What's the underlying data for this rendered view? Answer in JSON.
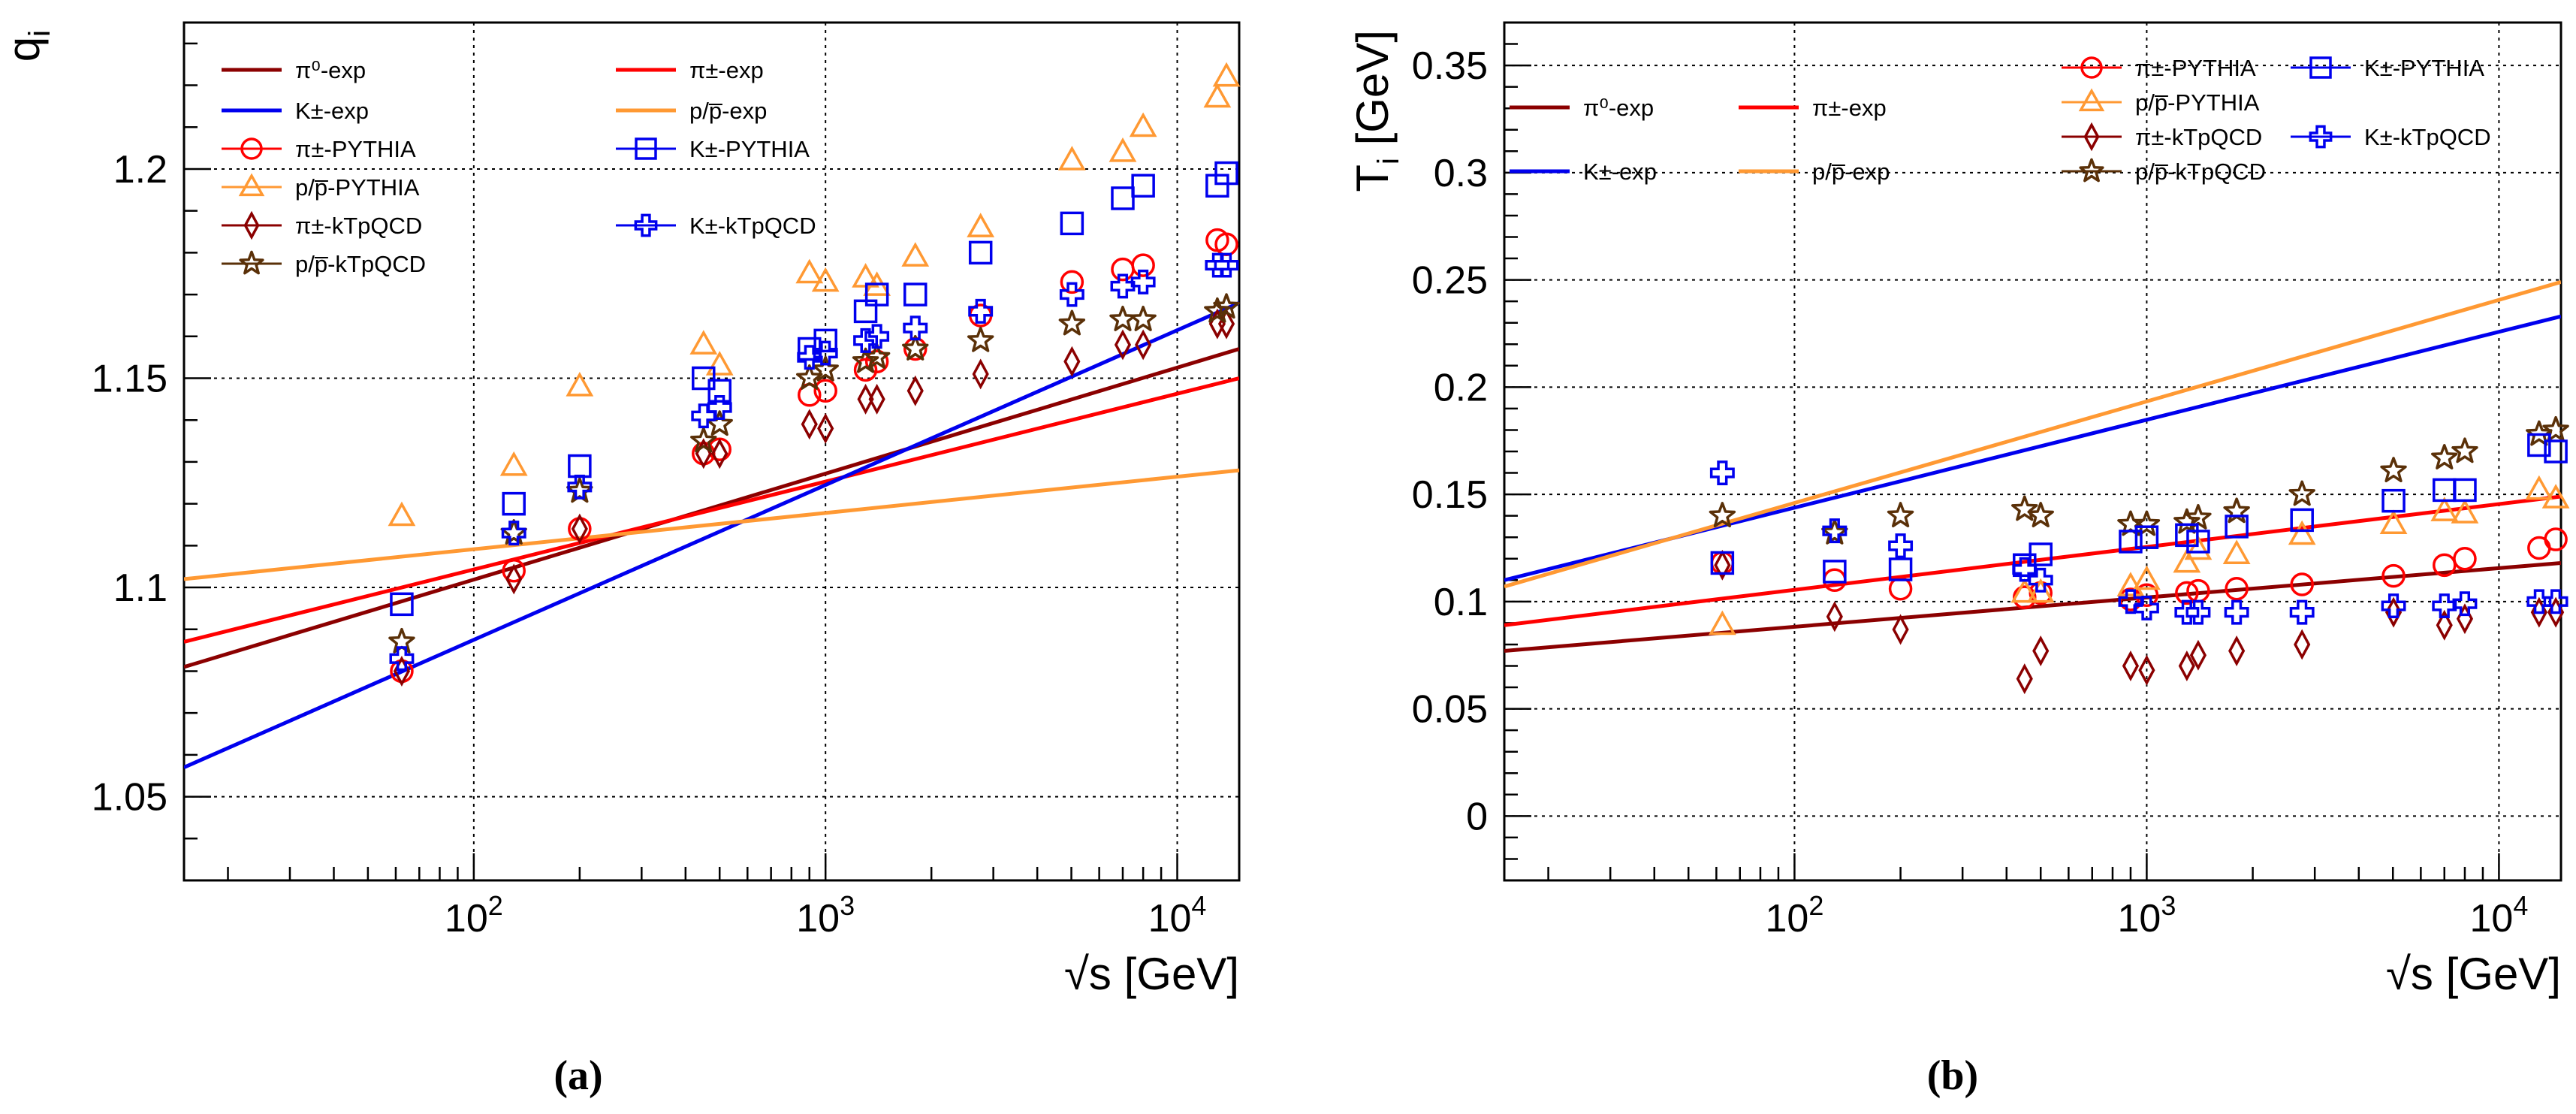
{
  "figure": {
    "caption_a": "(a)",
    "caption_b": "(b)"
  },
  "colors": {
    "pi0": "#8b0000",
    "pipm": "#ff0000",
    "kpm": "#0000ee",
    "proton": "#ff9933",
    "star": "#5a3008"
  },
  "chart_data": [
    {
      "type": "scatter",
      "panel": "a",
      "title": "",
      "xlabel": "√s [GeV]",
      "ylabel": "q_i",
      "ylabel_main": "q",
      "ylabel_sub": "i",
      "xscale": "log",
      "xlim": [
        15,
        15000
      ],
      "ylim": [
        1.03,
        1.235
      ],
      "xticks": [
        100,
        1000,
        10000
      ],
      "xtick_labels": [
        {
          "base": "10",
          "exp": "2"
        },
        {
          "base": "10",
          "exp": "3"
        },
        {
          "base": "10",
          "exp": "4"
        }
      ],
      "yticks": [
        1.05,
        1.1,
        1.15,
        1.2
      ],
      "ytick_labels": [
        "1.05",
        "1.1",
        "1.15",
        "1.2"
      ],
      "grid": true,
      "legend_position": "top-left",
      "legend": [
        {
          "label": "π⁰-exp",
          "key": "pi0_exp",
          "kind": "line",
          "col": 0
        },
        {
          "label": "K±-exp",
          "key": "k_exp",
          "kind": "line",
          "col": 0
        },
        {
          "label": "π±-PYTHIA",
          "key": "pi_py",
          "kind": "marker",
          "col": 0
        },
        {
          "label": "p/p̅-PYTHIA",
          "key": "p_py",
          "kind": "marker",
          "col": 0
        },
        {
          "label": "π±-kTpQCD",
          "key": "pi_kt",
          "kind": "marker",
          "col": 0
        },
        {
          "label": "p/p̅-kTpQCD",
          "key": "p_kt",
          "kind": "marker",
          "col": 0
        },
        {
          "label": "π±-exp",
          "key": "pipm_exp",
          "kind": "line",
          "col": 1
        },
        {
          "label": "p/p̅-exp",
          "key": "p_exp",
          "kind": "line",
          "col": 1
        },
        {
          "label": "K±-PYTHIA",
          "key": "k_py",
          "kind": "marker",
          "col": 1
        },
        {
          "label": "K±-kTpQCD",
          "key": "k_kt",
          "kind": "marker",
          "col": 1
        }
      ],
      "lines": [
        {
          "name": "pi0_exp",
          "color": "#8b0000",
          "x": [
            15,
            15000
          ],
          "y": [
            1.081,
            1.157
          ]
        },
        {
          "name": "pipm_exp",
          "color": "#ff0000",
          "x": [
            15,
            15000
          ],
          "y": [
            1.087,
            1.15
          ]
        },
        {
          "name": "k_exp",
          "color": "#0000ee",
          "x": [
            15,
            15000
          ],
          "y": [
            1.057,
            1.168
          ]
        },
        {
          "name": "p_exp",
          "color": "#ff9933",
          "x": [
            15,
            15000
          ],
          "y": [
            1.102,
            1.128
          ]
        }
      ],
      "series": [
        {
          "name": "pi_py",
          "marker": "circle",
          "color": "#ff0000",
          "x": [
            62.4,
            130,
            200,
            450,
            500,
            900,
            1000,
            1300,
            1400,
            1800,
            2760,
            5020,
            7000,
            8000,
            13000,
            13800
          ],
          "y": [
            1.08,
            1.104,
            1.114,
            1.132,
            1.133,
            1.146,
            1.147,
            1.152,
            1.154,
            1.157,
            1.165,
            1.173,
            1.176,
            1.177,
            1.183,
            1.182
          ]
        },
        {
          "name": "p_py",
          "marker": "triangle",
          "color": "#ff9933",
          "x": [
            62.4,
            130,
            200,
            450,
            500,
            900,
            1000,
            1300,
            1400,
            1800,
            2760,
            5020,
            7000,
            8000,
            13000,
            13800
          ],
          "y": [
            1.117,
            1.129,
            1.148,
            1.158,
            1.153,
            1.175,
            1.173,
            1.174,
            1.172,
            1.179,
            1.186,
            1.202,
            1.204,
            1.21,
            1.217,
            1.222
          ]
        },
        {
          "name": "pi_kt",
          "marker": "diamond",
          "color": "#8b0000",
          "x": [
            62.4,
            130,
            200,
            450,
            500,
            900,
            1000,
            1300,
            1400,
            1800,
            2760,
            5020,
            7000,
            8000,
            13000,
            13800
          ],
          "y": [
            1.08,
            1.102,
            1.114,
            1.132,
            1.132,
            1.139,
            1.138,
            1.145,
            1.145,
            1.147,
            1.151,
            1.154,
            1.158,
            1.158,
            1.163,
            1.163
          ]
        },
        {
          "name": "p_kt",
          "marker": "star",
          "color": "#5a3008",
          "x": [
            62.4,
            130,
            200,
            450,
            500,
            900,
            1000,
            1300,
            1400,
            1800,
            2760,
            5020,
            7000,
            8000,
            13000,
            13800
          ],
          "y": [
            1.087,
            1.113,
            1.123,
            1.135,
            1.139,
            1.15,
            1.152,
            1.154,
            1.155,
            1.157,
            1.159,
            1.163,
            1.164,
            1.164,
            1.166,
            1.167
          ]
        },
        {
          "name": "k_py",
          "marker": "square",
          "color": "#0000ee",
          "x": [
            62.4,
            130,
            200,
            450,
            500,
            900,
            1000,
            1300,
            1400,
            1800,
            2760,
            5020,
            7000,
            8000,
            13000,
            13800
          ],
          "y": [
            1.096,
            1.12,
            1.129,
            1.15,
            1.147,
            1.157,
            1.159,
            1.166,
            1.17,
            1.17,
            1.18,
            1.187,
            1.193,
            1.196,
            1.196,
            1.199
          ]
        },
        {
          "name": "k_kt",
          "marker": "cross",
          "color": "#0000ee",
          "x": [
            62.4,
            130,
            200,
            450,
            500,
            900,
            1000,
            1300,
            1400,
            1800,
            2760,
            5020,
            7000,
            8000,
            13000,
            13800
          ],
          "y": [
            1.083,
            1.113,
            1.124,
            1.141,
            1.143,
            1.155,
            1.156,
            1.159,
            1.16,
            1.162,
            1.166,
            1.17,
            1.172,
            1.173,
            1.177,
            1.177
          ]
        }
      ]
    },
    {
      "type": "scatter",
      "panel": "b",
      "title": "",
      "xlabel": "√s [GeV]",
      "ylabel": "T_i [GeV]",
      "ylabel_main": "T",
      "ylabel_sub": "i",
      "ylabel_unit": "[GeV]",
      "xscale": "log",
      "xlim": [
        15,
        15000
      ],
      "ylim": [
        -0.03,
        0.37
      ],
      "xticks": [
        100,
        1000,
        10000
      ],
      "xtick_labels": [
        {
          "base": "10",
          "exp": "2"
        },
        {
          "base": "10",
          "exp": "3"
        },
        {
          "base": "10",
          "exp": "4"
        }
      ],
      "yticks": [
        0,
        0.05,
        0.1,
        0.15,
        0.2,
        0.25,
        0.3,
        0.35
      ],
      "ytick_labels": [
        "0",
        "0.05",
        "0.1",
        "0.15",
        "0.2",
        "0.25",
        "0.3",
        "0.35"
      ],
      "grid": true,
      "legend_position": "top",
      "legend": [
        {
          "label": "π⁰-exp",
          "key": "pi0_exp",
          "kind": "line",
          "group": "left"
        },
        {
          "label": "π±-exp",
          "key": "pipm_exp",
          "kind": "line",
          "group": "left"
        },
        {
          "label": "K±-exp",
          "key": "k_exp",
          "kind": "line",
          "group": "left"
        },
        {
          "label": "p/p̅-exp",
          "key": "p_exp",
          "kind": "line",
          "group": "left"
        },
        {
          "label": "π±-PYTHIA",
          "key": "pi_py",
          "kind": "marker",
          "group": "right"
        },
        {
          "label": "K±-PYTHIA",
          "key": "k_py",
          "kind": "marker",
          "group": "right"
        },
        {
          "label": "p/p̅-PYTHIA",
          "key": "p_py",
          "kind": "marker",
          "group": "right"
        },
        {
          "label": "π±-kTpQCD",
          "key": "pi_kt",
          "kind": "marker",
          "group": "right"
        },
        {
          "label": "K±-kTpQCD",
          "key": "k_kt",
          "kind": "marker",
          "group": "right"
        },
        {
          "label": "p/p̅-kTpQCD",
          "key": "p_kt",
          "kind": "marker",
          "group": "right"
        }
      ],
      "lines": [
        {
          "name": "pi0_exp",
          "color": "#8b0000",
          "x": [
            15,
            15000
          ],
          "y": [
            0.077,
            0.118
          ]
        },
        {
          "name": "pipm_exp",
          "color": "#ff0000",
          "x": [
            15,
            15000
          ],
          "y": [
            0.089,
            0.149
          ]
        },
        {
          "name": "k_exp",
          "color": "#0000ee",
          "x": [
            15,
            15000
          ],
          "y": [
            0.11,
            0.233
          ]
        },
        {
          "name": "p_exp",
          "color": "#ff9933",
          "x": [
            15,
            15000
          ],
          "y": [
            0.107,
            0.249
          ]
        }
      ],
      "series": [
        {
          "name": "pi_py",
          "marker": "circle",
          "color": "#ff0000",
          "x": [
            62.4,
            130,
            200,
            450,
            500,
            900,
            1000,
            1300,
            1400,
            1800,
            2760,
            5020,
            7000,
            8000,
            13000,
            14500
          ],
          "y": [
            0.118,
            0.11,
            0.106,
            0.102,
            0.104,
            0.101,
            0.103,
            0.104,
            0.105,
            0.106,
            0.108,
            0.112,
            0.117,
            0.12,
            0.125,
            0.129
          ]
        },
        {
          "name": "p_py",
          "marker": "triangle",
          "color": "#ff9933",
          "x": [
            62.4,
            450,
            500,
            900,
            1000,
            1300,
            1400,
            1800,
            2760,
            5020,
            7000,
            8000,
            13000,
            14500
          ],
          "y": [
            0.089,
            0.104,
            0.104,
            0.107,
            0.11,
            0.118,
            0.124,
            0.122,
            0.131,
            0.136,
            0.142,
            0.141,
            0.152,
            0.148
          ]
        },
        {
          "name": "pi_kt",
          "marker": "diamond",
          "color": "#8b0000",
          "x": [
            62.4,
            130,
            200,
            450,
            500,
            900,
            1000,
            1300,
            1400,
            1800,
            2760,
            5020,
            7000,
            8000,
            13000,
            14500
          ],
          "y": [
            0.117,
            0.093,
            0.087,
            0.064,
            0.077,
            0.07,
            0.068,
            0.07,
            0.075,
            0.077,
            0.08,
            0.095,
            0.089,
            0.092,
            0.095,
            0.095
          ]
        },
        {
          "name": "p_kt",
          "marker": "star",
          "color": "#5a3008",
          "x": [
            62.4,
            130,
            200,
            450,
            500,
            900,
            1000,
            1300,
            1400,
            1800,
            2760,
            5020,
            7000,
            8000,
            13000,
            14500
          ],
          "y": [
            0.14,
            0.132,
            0.14,
            0.143,
            0.14,
            0.136,
            0.136,
            0.137,
            0.139,
            0.142,
            0.15,
            0.161,
            0.167,
            0.17,
            0.178,
            0.18
          ]
        },
        {
          "name": "k_py",
          "marker": "square",
          "color": "#0000ee",
          "x": [
            62.4,
            130,
            200,
            450,
            500,
            900,
            1000,
            1300,
            1400,
            1800,
            2760,
            5020,
            7000,
            8000,
            13000,
            14500
          ],
          "y": [
            0.118,
            0.114,
            0.115,
            0.117,
            0.122,
            0.128,
            0.13,
            0.131,
            0.128,
            0.135,
            0.138,
            0.147,
            0.152,
            0.152,
            0.173,
            0.17
          ]
        },
        {
          "name": "k_kt",
          "marker": "cross",
          "color": "#0000ee",
          "x": [
            62.4,
            130,
            200,
            450,
            500,
            900,
            1000,
            1300,
            1400,
            1800,
            2760,
            5020,
            7000,
            8000,
            13000,
            14500
          ],
          "y": [
            0.16,
            0.133,
            0.126,
            0.115,
            0.11,
            0.1,
            0.097,
            0.095,
            0.095,
            0.095,
            0.095,
            0.098,
            0.098,
            0.099,
            0.1,
            0.1
          ]
        }
      ]
    }
  ]
}
